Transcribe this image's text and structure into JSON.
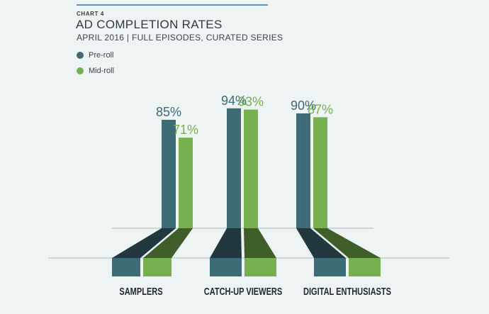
{
  "header": {
    "chart_label": "CHART 4",
    "title": "AD COMPLETION RATES",
    "subtitle": "APRIL 2016 | FULL EPISODES, CURATED SERIES"
  },
  "colors": {
    "preroll": "#3d6b76",
    "preroll_dark": "#22383f",
    "midroll": "#76b04f",
    "midroll_dark": "#3f5e2a",
    "preroll_text": "#3d6b76",
    "midroll_text": "#76b04f"
  },
  "chart_data": {
    "type": "bar",
    "title": "AD COMPLETION RATES",
    "subtitle": "APRIL 2016 | FULL EPISODES, CURATED SERIES",
    "categories": [
      "SAMPLERS",
      "CATCH-UP VIEWERS",
      "DIGITAL ENTHUSIASTS"
    ],
    "series": [
      {
        "name": "Pre-roll",
        "values": [
          85,
          94,
          90
        ],
        "labels": [
          "85%",
          "94%",
          "90%"
        ]
      },
      {
        "name": "Mid-roll",
        "values": [
          71,
          93,
          87
        ],
        "labels": [
          "71%",
          "93%",
          "87%"
        ]
      }
    ],
    "ylim": [
      0,
      100
    ],
    "legend_position": "top-left",
    "grid": false
  }
}
